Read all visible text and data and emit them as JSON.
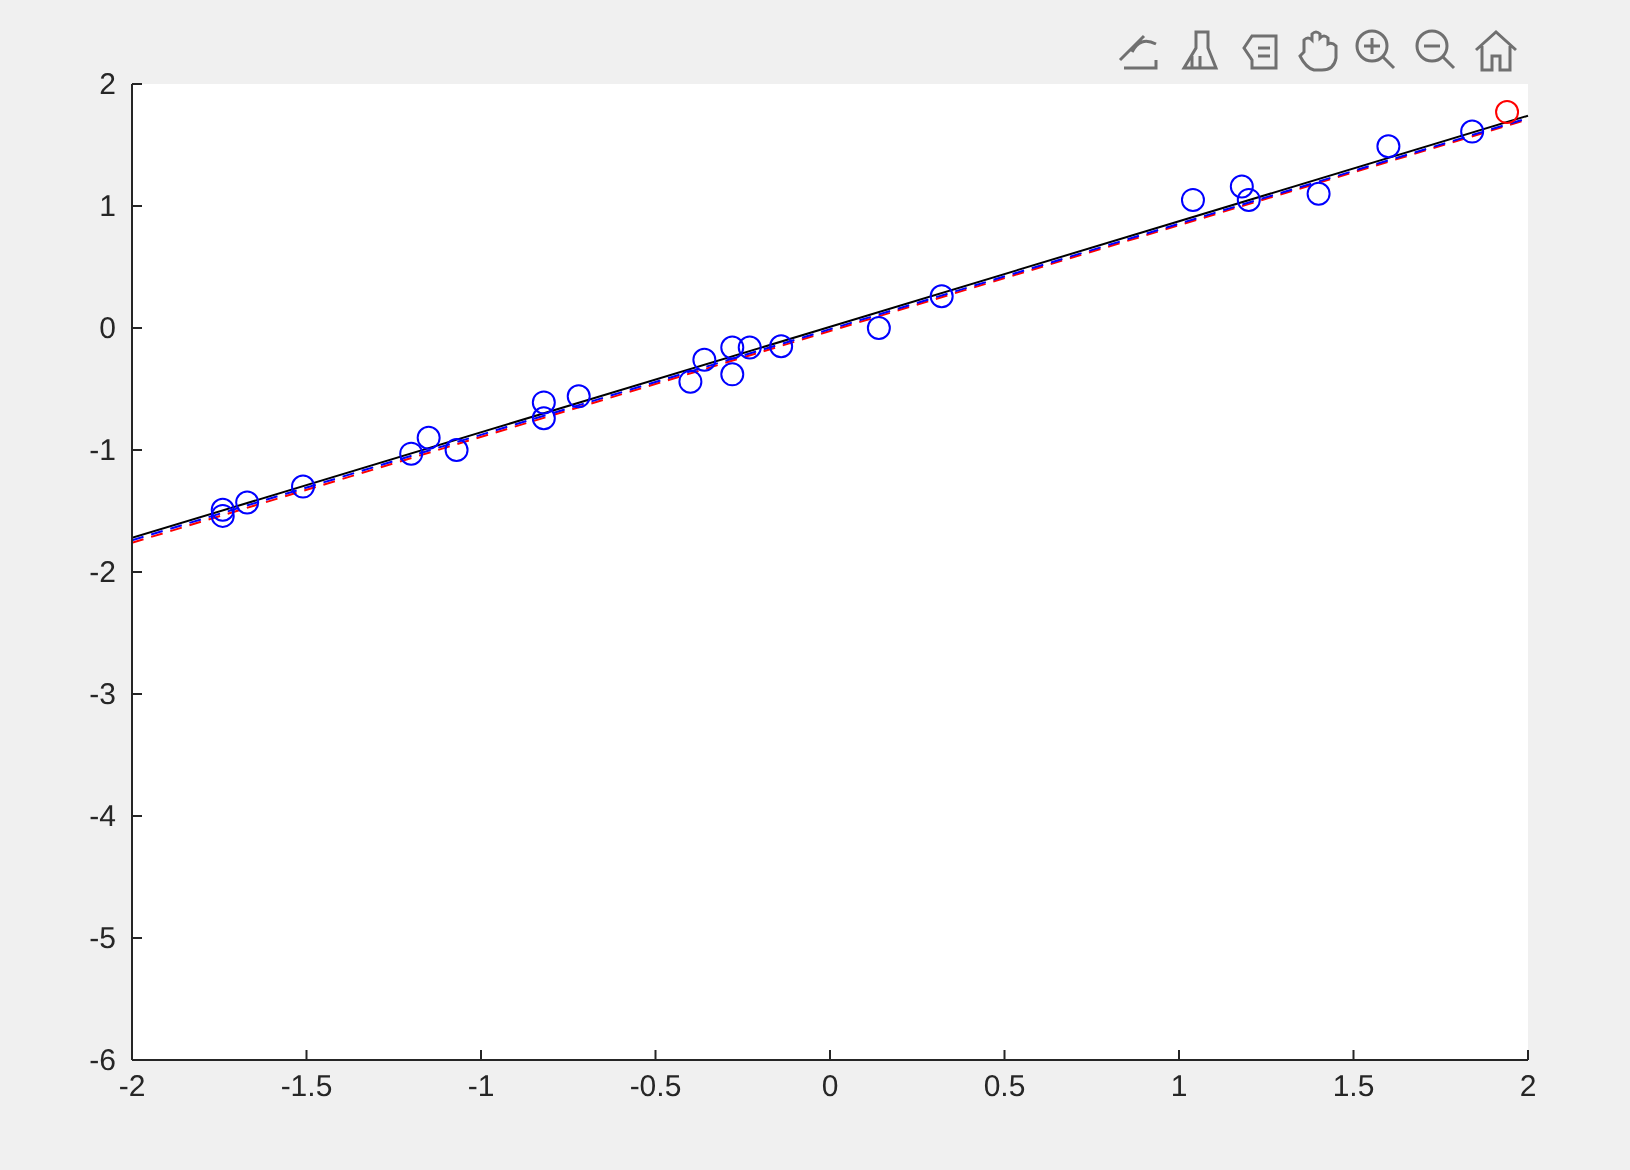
{
  "chart_data": {
    "type": "scatter",
    "xlim": [
      -2,
      2
    ],
    "ylim": [
      -6,
      2
    ],
    "xticks": [
      -2,
      -1.5,
      -1,
      -0.5,
      0,
      0.5,
      1,
      1.5,
      2
    ],
    "yticks": [
      -6,
      -5,
      -4,
      -3,
      -2,
      -1,
      0,
      1,
      2
    ],
    "grid": false,
    "series": [
      {
        "color": "#0000ff",
        "marker": "circle",
        "x": [
          -1.74,
          -1.74,
          -1.67,
          -1.51,
          -1.2,
          -1.15,
          -1.07,
          -0.82,
          -0.82,
          -0.72,
          -0.4,
          -0.36,
          -0.28,
          -0.28,
          -0.23,
          -0.14,
          0.14,
          0.32,
          1.04,
          1.18,
          1.2,
          1.4,
          1.6,
          1.84
        ],
        "values": [
          -1.54,
          -1.49,
          -1.43,
          -1.3,
          -1.03,
          -0.9,
          -1.0,
          -0.61,
          -0.74,
          -0.56,
          -0.44,
          -0.26,
          -0.16,
          -0.38,
          -0.16,
          -0.15,
          0.0,
          0.26,
          1.05,
          1.16,
          1.05,
          1.1,
          1.49,
          1.61
        ]
      },
      {
        "color": "#ff0000",
        "marker": "circle",
        "x": [
          1.94
        ],
        "values": [
          1.77
        ]
      },
      {
        "type": "line",
        "color": "#000000",
        "line_style": "solid",
        "x": [
          -2,
          2
        ],
        "values": [
          -1.72,
          1.74
        ]
      },
      {
        "type": "line",
        "color": "#ff0000",
        "line_style": "dashed",
        "x": [
          -2,
          2
        ],
        "values": [
          -1.76,
          1.71
        ]
      },
      {
        "type": "line",
        "color": "#0000ff",
        "line_style": "dashed",
        "x": [
          -2,
          2
        ],
        "values": [
          -1.74,
          1.72
        ]
      }
    ]
  }
}
